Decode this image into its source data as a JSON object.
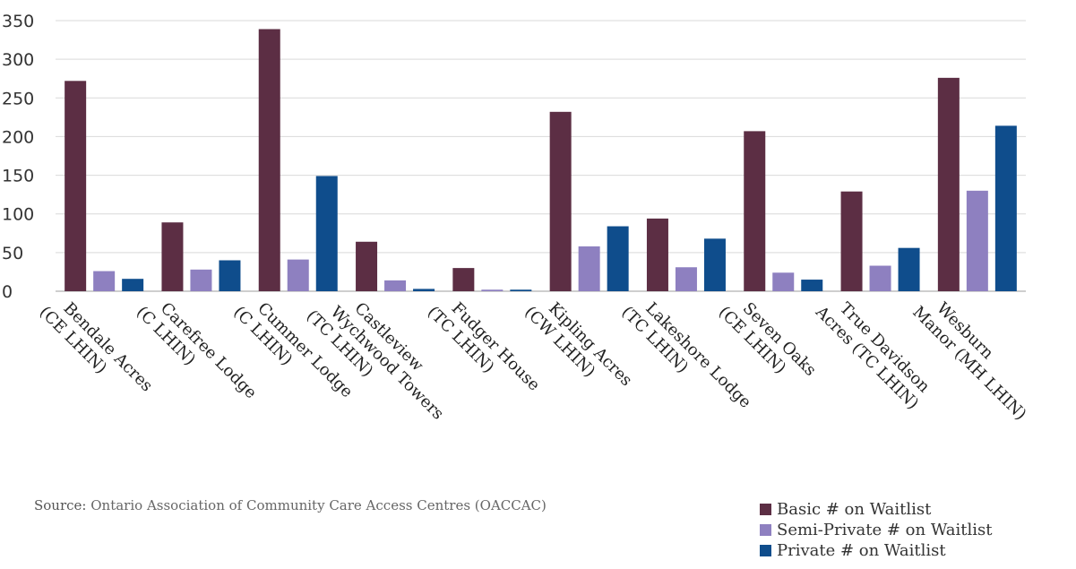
{
  "chart_data": {
    "type": "bar",
    "title": "",
    "xlabel": "",
    "ylabel": "",
    "ylim": [
      0,
      350
    ],
    "yticks": [
      0,
      50,
      100,
      150,
      200,
      250,
      300,
      350
    ],
    "grid": true,
    "legend_position": "bottom-right",
    "categories": [
      [
        "Bendale Acres",
        "(CE LHIN)"
      ],
      [
        "Carefree Lodge",
        "(C LHIN)"
      ],
      [
        "Cummer Lodge",
        "(C LHIN)"
      ],
      [
        "Castleview",
        "Wychwood Towers",
        "(TC LHIN)"
      ],
      [
        "Fudger House",
        "(TC LHIN)"
      ],
      [
        "Kipling Acres",
        "(CW LHIN)"
      ],
      [
        "Lakeshore Lodge",
        "(TC LHIN)"
      ],
      [
        "Seven Oaks",
        "(CE LHIN)"
      ],
      [
        "True Davidson",
        "Acres (TC LHIN)"
      ],
      [
        "Wesburn",
        "Manor (MH LHIN)"
      ]
    ],
    "series": [
      {
        "name": "Basic # on Waitlist",
        "color": "#5c2e44",
        "values": [
          272,
          89,
          339,
          64,
          30,
          232,
          94,
          207,
          129,
          276
        ]
      },
      {
        "name": "Semi-Private # on Waitlist",
        "color": "#8e80c0",
        "values": [
          26,
          28,
          41,
          14,
          2,
          58,
          31,
          24,
          33,
          130
        ]
      },
      {
        "name": "Private # on Waitlist",
        "color": "#0f4d8c",
        "values": [
          16,
          40,
          149,
          3,
          2,
          84,
          68,
          15,
          56,
          214
        ]
      }
    ]
  },
  "source": {
    "prefix": "Source:",
    "text": " Ontario Association of Community Care Access Centres (OACCAC)"
  }
}
